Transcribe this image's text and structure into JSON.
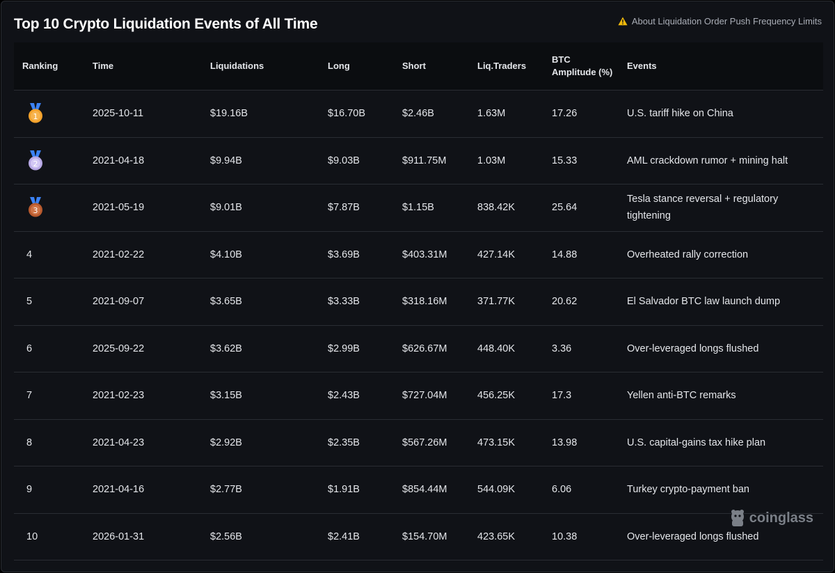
{
  "page": {
    "title": "Top 10 Crypto Liquidation Events of All Time",
    "notice_label": "About Liquidation Order Push Frequency Limits",
    "watermark": "coinglass"
  },
  "colors": {
    "background": "#101217",
    "header_row": "#0b0d10",
    "border": "#2a2d33",
    "text": "#e4e6ea",
    "muted": "#a9adb6",
    "warning": "#f0b90b",
    "medal_gold": "#f4a22c",
    "medal_silver": "#c8b9f0",
    "medal_bronze": "#c8683a",
    "medal_ribbon": "#3b82f6"
  },
  "table": {
    "columns": [
      "Ranking",
      "Time",
      "Liquidations",
      "Long",
      "Short",
      "Liq.Traders",
      "BTC Amplitude (%)",
      "Events"
    ],
    "rows": [
      {
        "rank": "1",
        "medal": "gold-medal-icon",
        "time": "2025-10-11",
        "liquidations": "$19.16B",
        "long": "$16.70B",
        "short": "$2.46B",
        "traders": "1.63M",
        "amplitude": "17.26",
        "event": "U.S. tariff hike on China"
      },
      {
        "rank": "2",
        "medal": "silver-medal-icon",
        "time": "2021-04-18",
        "liquidations": "$9.94B",
        "long": "$9.03B",
        "short": "$911.75M",
        "traders": "1.03M",
        "amplitude": "15.33",
        "event": "AML crackdown rumor + mining halt"
      },
      {
        "rank": "3",
        "medal": "bronze-medal-icon",
        "time": "2021-05-19",
        "liquidations": "$9.01B",
        "long": "$7.87B",
        "short": "$1.15B",
        "traders": "838.42K",
        "amplitude": "25.64",
        "event": "Tesla stance reversal + regulatory tightening"
      },
      {
        "rank": "4",
        "time": "2021-02-22",
        "liquidations": "$4.10B",
        "long": "$3.69B",
        "short": "$403.31M",
        "traders": "427.14K",
        "amplitude": "14.88",
        "event": "Overheated rally correction"
      },
      {
        "rank": "5",
        "time": "2021-09-07",
        "liquidations": "$3.65B",
        "long": "$3.33B",
        "short": "$318.16M",
        "traders": "371.77K",
        "amplitude": "20.62",
        "event": "El Salvador BTC law launch dump"
      },
      {
        "rank": "6",
        "time": "2025-09-22",
        "liquidations": "$3.62B",
        "long": "$2.99B",
        "short": "$626.67M",
        "traders": "448.40K",
        "amplitude": "3.36",
        "event": "Over-leveraged longs flushed"
      },
      {
        "rank": "7",
        "time": "2021-02-23",
        "liquidations": "$3.15B",
        "long": "$2.43B",
        "short": "$727.04M",
        "traders": "456.25K",
        "amplitude": "17.3",
        "event": "Yellen anti-BTC remarks"
      },
      {
        "rank": "8",
        "time": "2021-04-23",
        "liquidations": "$2.92B",
        "long": "$2.35B",
        "short": "$567.26M",
        "traders": "473.15K",
        "amplitude": "13.98",
        "event": "U.S. capital-gains tax hike plan"
      },
      {
        "rank": "9",
        "time": "2021-04-16",
        "liquidations": "$2.77B",
        "long": "$1.91B",
        "short": "$854.44M",
        "traders": "544.09K",
        "amplitude": "6.06",
        "event": "Turkey crypto-payment ban"
      },
      {
        "rank": "10",
        "time": "2026-01-31",
        "liquidations": "$2.56B",
        "long": "$2.41B",
        "short": "$154.70M",
        "traders": "423.65K",
        "amplitude": "10.38",
        "event": "Over-leveraged longs flushed"
      }
    ]
  }
}
